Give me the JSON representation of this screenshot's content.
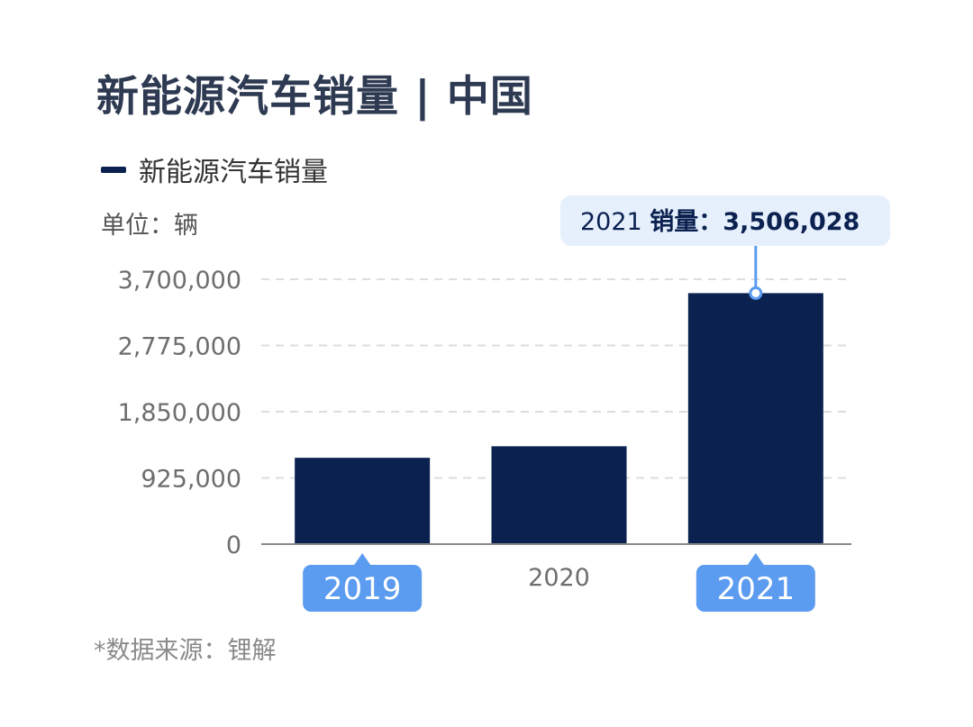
{
  "title": "新能源汽车销量 | 中国",
  "unit_label": "单位：辆",
  "source": "*数据来源：锂解",
  "colors": {
    "bar": "#0b2150",
    "highlight": "#5b9bf0",
    "tooltip_bg": "#e6f0fc",
    "grid": "#dddddd",
    "axis": "#888888"
  },
  "chart_data": {
    "type": "bar",
    "categories": [
      "2019",
      "2020",
      "2021"
    ],
    "series": [
      {
        "name": "新能源汽车销量",
        "values": [
          1206000,
          1367000,
          3506028
        ]
      }
    ],
    "ylim": [
      0,
      3700000
    ],
    "yticks": [
      "3,700,000",
      "2,775,000",
      "1,850,000",
      "925,000",
      "0"
    ],
    "ytick_values": [
      3700000,
      2775000,
      1850000,
      925000,
      0
    ],
    "highlighted_categories": [
      "2019",
      "2021"
    ],
    "grid": true,
    "legend": "top-left",
    "tooltip": {
      "category": "2021",
      "year": "2021",
      "label": "销量：",
      "value": "3,506,028"
    }
  }
}
